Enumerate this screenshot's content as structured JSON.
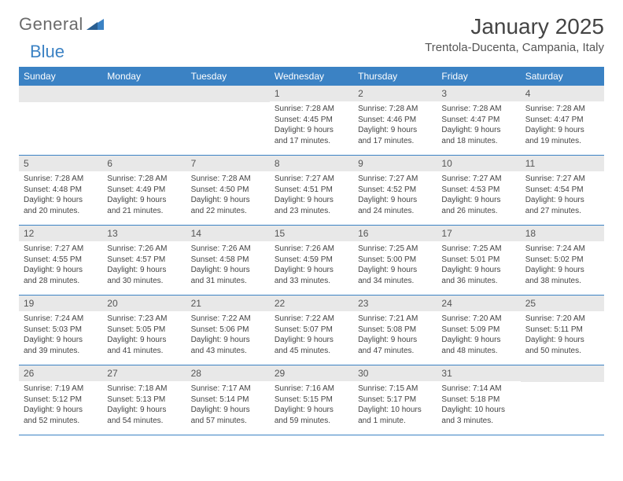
{
  "brand": {
    "part1": "General",
    "part2": "Blue"
  },
  "title": "January 2025",
  "location": "Trentola-Ducenta, Campania, Italy",
  "colors": {
    "header_bg": "#3b82c4",
    "daynum_bg": "#e8e8e8",
    "text": "#444444",
    "page_bg": "#ffffff"
  },
  "weekdays": [
    "Sunday",
    "Monday",
    "Tuesday",
    "Wednesday",
    "Thursday",
    "Friday",
    "Saturday"
  ],
  "weeks": [
    [
      {
        "n": "",
        "sr": "",
        "ss": "",
        "dl": ""
      },
      {
        "n": "",
        "sr": "",
        "ss": "",
        "dl": ""
      },
      {
        "n": "",
        "sr": "",
        "ss": "",
        "dl": ""
      },
      {
        "n": "1",
        "sr": "Sunrise: 7:28 AM",
        "ss": "Sunset: 4:45 PM",
        "dl": "Daylight: 9 hours and 17 minutes."
      },
      {
        "n": "2",
        "sr": "Sunrise: 7:28 AM",
        "ss": "Sunset: 4:46 PM",
        "dl": "Daylight: 9 hours and 17 minutes."
      },
      {
        "n": "3",
        "sr": "Sunrise: 7:28 AM",
        "ss": "Sunset: 4:47 PM",
        "dl": "Daylight: 9 hours and 18 minutes."
      },
      {
        "n": "4",
        "sr": "Sunrise: 7:28 AM",
        "ss": "Sunset: 4:47 PM",
        "dl": "Daylight: 9 hours and 19 minutes."
      }
    ],
    [
      {
        "n": "5",
        "sr": "Sunrise: 7:28 AM",
        "ss": "Sunset: 4:48 PM",
        "dl": "Daylight: 9 hours and 20 minutes."
      },
      {
        "n": "6",
        "sr": "Sunrise: 7:28 AM",
        "ss": "Sunset: 4:49 PM",
        "dl": "Daylight: 9 hours and 21 minutes."
      },
      {
        "n": "7",
        "sr": "Sunrise: 7:28 AM",
        "ss": "Sunset: 4:50 PM",
        "dl": "Daylight: 9 hours and 22 minutes."
      },
      {
        "n": "8",
        "sr": "Sunrise: 7:27 AM",
        "ss": "Sunset: 4:51 PM",
        "dl": "Daylight: 9 hours and 23 minutes."
      },
      {
        "n": "9",
        "sr": "Sunrise: 7:27 AM",
        "ss": "Sunset: 4:52 PM",
        "dl": "Daylight: 9 hours and 24 minutes."
      },
      {
        "n": "10",
        "sr": "Sunrise: 7:27 AM",
        "ss": "Sunset: 4:53 PM",
        "dl": "Daylight: 9 hours and 26 minutes."
      },
      {
        "n": "11",
        "sr": "Sunrise: 7:27 AM",
        "ss": "Sunset: 4:54 PM",
        "dl": "Daylight: 9 hours and 27 minutes."
      }
    ],
    [
      {
        "n": "12",
        "sr": "Sunrise: 7:27 AM",
        "ss": "Sunset: 4:55 PM",
        "dl": "Daylight: 9 hours and 28 minutes."
      },
      {
        "n": "13",
        "sr": "Sunrise: 7:26 AM",
        "ss": "Sunset: 4:57 PM",
        "dl": "Daylight: 9 hours and 30 minutes."
      },
      {
        "n": "14",
        "sr": "Sunrise: 7:26 AM",
        "ss": "Sunset: 4:58 PM",
        "dl": "Daylight: 9 hours and 31 minutes."
      },
      {
        "n": "15",
        "sr": "Sunrise: 7:26 AM",
        "ss": "Sunset: 4:59 PM",
        "dl": "Daylight: 9 hours and 33 minutes."
      },
      {
        "n": "16",
        "sr": "Sunrise: 7:25 AM",
        "ss": "Sunset: 5:00 PM",
        "dl": "Daylight: 9 hours and 34 minutes."
      },
      {
        "n": "17",
        "sr": "Sunrise: 7:25 AM",
        "ss": "Sunset: 5:01 PM",
        "dl": "Daylight: 9 hours and 36 minutes."
      },
      {
        "n": "18",
        "sr": "Sunrise: 7:24 AM",
        "ss": "Sunset: 5:02 PM",
        "dl": "Daylight: 9 hours and 38 minutes."
      }
    ],
    [
      {
        "n": "19",
        "sr": "Sunrise: 7:24 AM",
        "ss": "Sunset: 5:03 PM",
        "dl": "Daylight: 9 hours and 39 minutes."
      },
      {
        "n": "20",
        "sr": "Sunrise: 7:23 AM",
        "ss": "Sunset: 5:05 PM",
        "dl": "Daylight: 9 hours and 41 minutes."
      },
      {
        "n": "21",
        "sr": "Sunrise: 7:22 AM",
        "ss": "Sunset: 5:06 PM",
        "dl": "Daylight: 9 hours and 43 minutes."
      },
      {
        "n": "22",
        "sr": "Sunrise: 7:22 AM",
        "ss": "Sunset: 5:07 PM",
        "dl": "Daylight: 9 hours and 45 minutes."
      },
      {
        "n": "23",
        "sr": "Sunrise: 7:21 AM",
        "ss": "Sunset: 5:08 PM",
        "dl": "Daylight: 9 hours and 47 minutes."
      },
      {
        "n": "24",
        "sr": "Sunrise: 7:20 AM",
        "ss": "Sunset: 5:09 PM",
        "dl": "Daylight: 9 hours and 48 minutes."
      },
      {
        "n": "25",
        "sr": "Sunrise: 7:20 AM",
        "ss": "Sunset: 5:11 PM",
        "dl": "Daylight: 9 hours and 50 minutes."
      }
    ],
    [
      {
        "n": "26",
        "sr": "Sunrise: 7:19 AM",
        "ss": "Sunset: 5:12 PM",
        "dl": "Daylight: 9 hours and 52 minutes."
      },
      {
        "n": "27",
        "sr": "Sunrise: 7:18 AM",
        "ss": "Sunset: 5:13 PM",
        "dl": "Daylight: 9 hours and 54 minutes."
      },
      {
        "n": "28",
        "sr": "Sunrise: 7:17 AM",
        "ss": "Sunset: 5:14 PM",
        "dl": "Daylight: 9 hours and 57 minutes."
      },
      {
        "n": "29",
        "sr": "Sunrise: 7:16 AM",
        "ss": "Sunset: 5:15 PM",
        "dl": "Daylight: 9 hours and 59 minutes."
      },
      {
        "n": "30",
        "sr": "Sunrise: 7:15 AM",
        "ss": "Sunset: 5:17 PM",
        "dl": "Daylight: 10 hours and 1 minute."
      },
      {
        "n": "31",
        "sr": "Sunrise: 7:14 AM",
        "ss": "Sunset: 5:18 PM",
        "dl": "Daylight: 10 hours and 3 minutes."
      },
      {
        "n": "",
        "sr": "",
        "ss": "",
        "dl": ""
      }
    ]
  ]
}
